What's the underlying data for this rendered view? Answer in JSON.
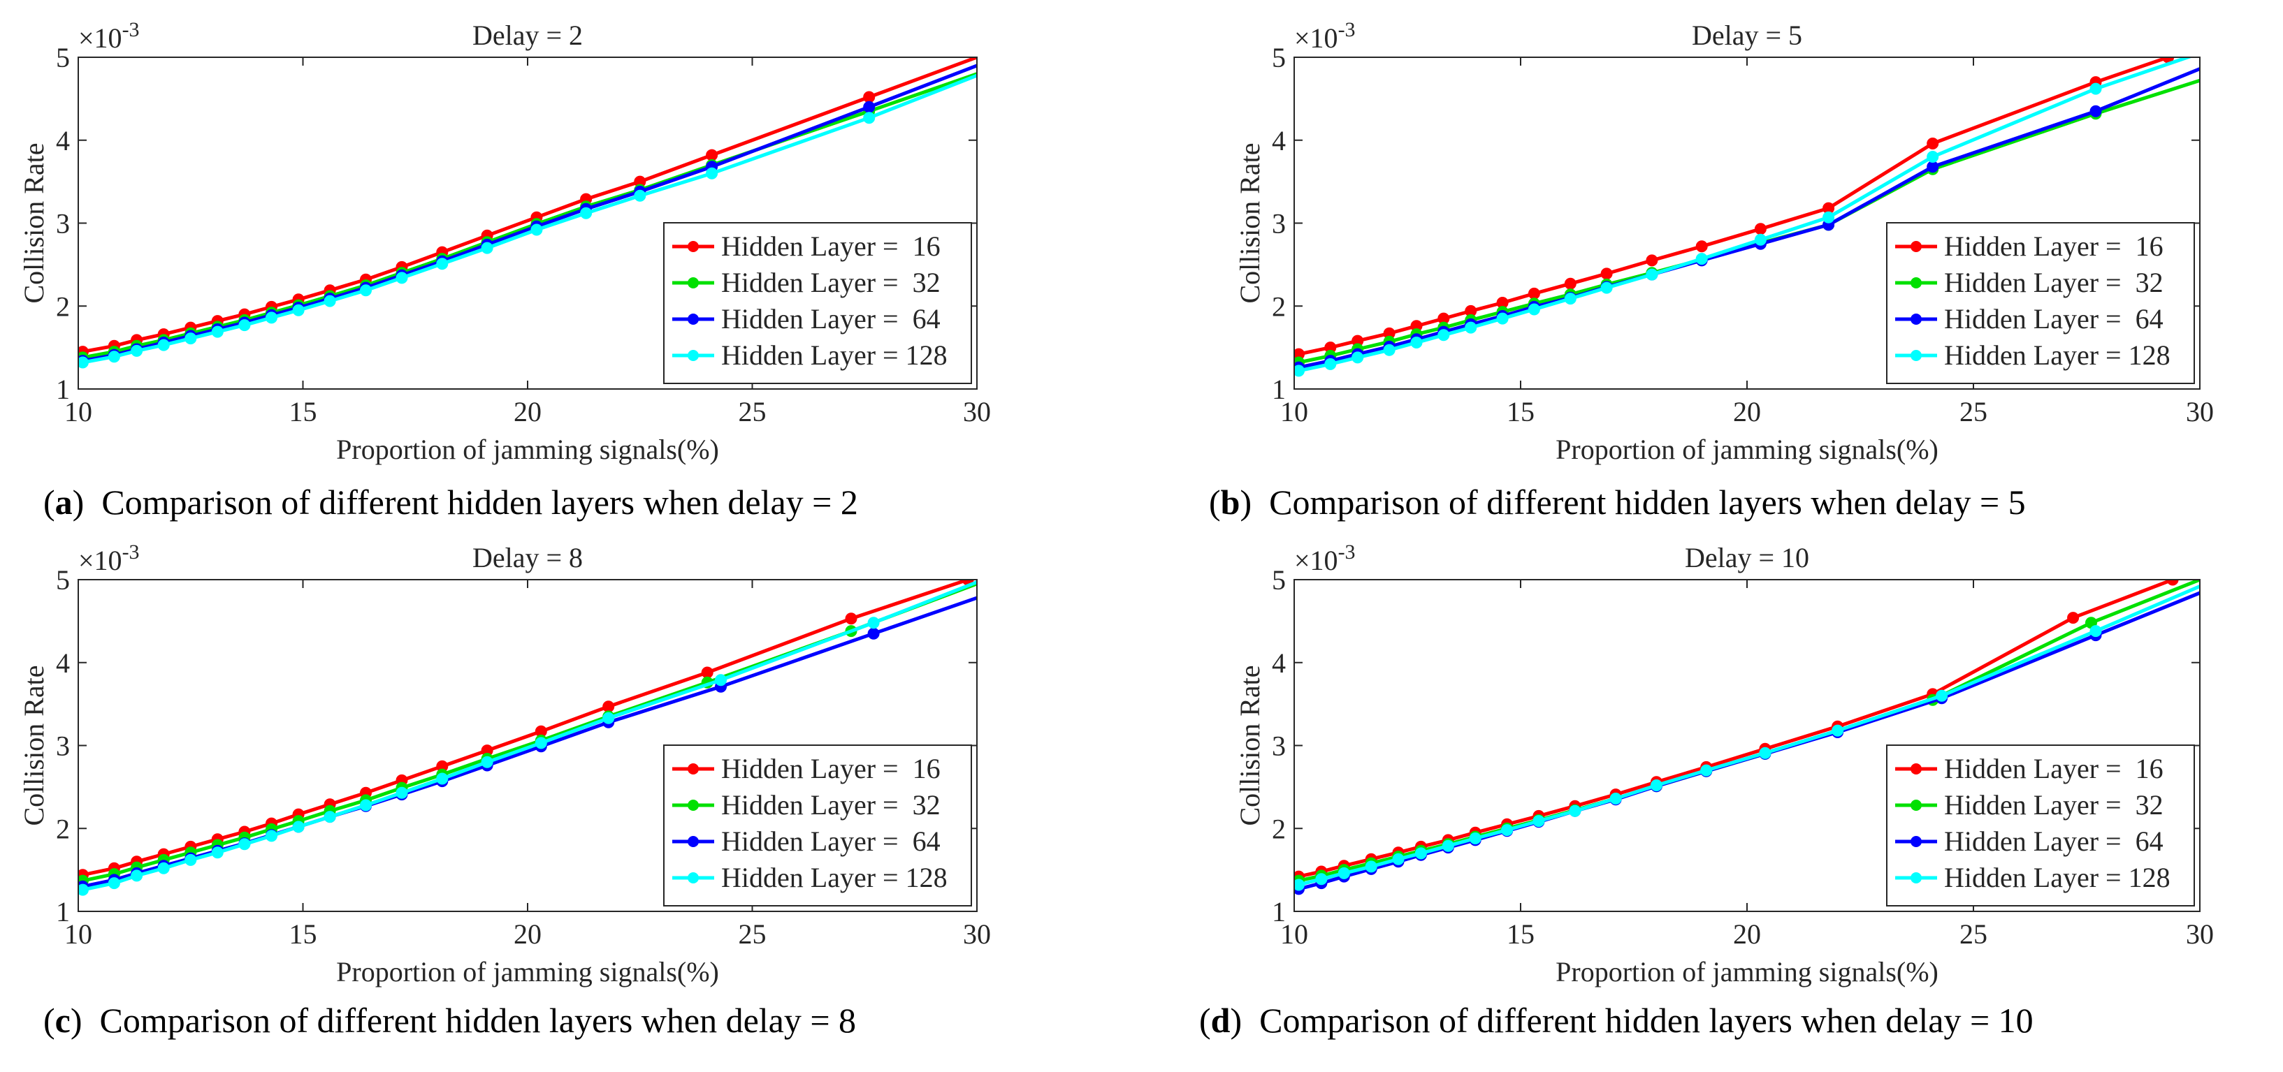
{
  "figure": {
    "panels": [
      {
        "caption_tag": "a",
        "caption_text": "Comparison of different hidden layers when delay = 2",
        "chart_data": {
          "type": "line",
          "title": "Delay =  2",
          "xlabel": "Proportion of jamming signals(%)",
          "ylabel": "Collision Rate",
          "y_exponent_label": "×10",
          "y_exponent": "-3",
          "xlim": [
            10,
            30
          ],
          "ylim": [
            1,
            5
          ],
          "xticks": [
            10,
            15,
            20,
            25,
            30
          ],
          "yticks": [
            1,
            2,
            3,
            4,
            5
          ],
          "grid": false,
          "legend_position": "bottom-right",
          "series": [
            {
              "name": "Hidden Layer =  16",
              "color": "#ff0000",
              "x": [
                10.1,
                10.8,
                11.3,
                11.9,
                12.5,
                13.1,
                13.7,
                14.3,
                14.9,
                15.6,
                16.4,
                17.2,
                18.1,
                19.1,
                20.2,
                21.3,
                22.5,
                24.1,
                27.6,
                30.0
              ],
              "y": [
                1.45,
                1.52,
                1.59,
                1.66,
                1.74,
                1.82,
                1.9,
                1.99,
                2.08,
                2.19,
                2.32,
                2.47,
                2.65,
                2.85,
                3.07,
                3.29,
                3.5,
                3.82,
                4.52,
                5.0
              ]
            },
            {
              "name": "Hidden Layer =  32",
              "color": "#00e000",
              "x": [
                10.1,
                10.8,
                11.3,
                11.9,
                12.5,
                13.1,
                13.7,
                14.3,
                14.9,
                15.6,
                16.4,
                17.2,
                18.1,
                19.1,
                20.2,
                21.3,
                22.5,
                24.1,
                27.6,
                30.0
              ],
              "y": [
                1.38,
                1.45,
                1.52,
                1.59,
                1.67,
                1.75,
                1.83,
                1.92,
                2.01,
                2.12,
                2.25,
                2.4,
                2.57,
                2.77,
                2.99,
                3.2,
                3.4,
                3.7,
                4.35,
                4.8
              ]
            },
            {
              "name": "Hidden Layer =  64",
              "color": "#0000ff",
              "x": [
                10.1,
                10.8,
                11.3,
                11.9,
                12.5,
                13.1,
                13.7,
                14.3,
                14.9,
                15.6,
                16.4,
                17.2,
                18.1,
                19.1,
                20.2,
                21.3,
                22.5,
                24.1,
                27.6,
                30.0
              ],
              "y": [
                1.34,
                1.41,
                1.48,
                1.56,
                1.64,
                1.72,
                1.8,
                1.89,
                1.98,
                2.09,
                2.22,
                2.37,
                2.54,
                2.74,
                2.96,
                3.17,
                3.38,
                3.68,
                4.4,
                4.9
              ]
            },
            {
              "name": "Hidden Layer = 128",
              "color": "#00ffff",
              "x": [
                10.1,
                10.8,
                11.3,
                11.9,
                12.5,
                13.1,
                13.7,
                14.3,
                14.9,
                15.6,
                16.4,
                17.2,
                18.1,
                19.1,
                20.2,
                21.3,
                22.5,
                24.1,
                27.6,
                30.0
              ],
              "y": [
                1.32,
                1.39,
                1.46,
                1.53,
                1.61,
                1.69,
                1.77,
                1.86,
                1.95,
                2.06,
                2.19,
                2.34,
                2.51,
                2.7,
                2.92,
                3.12,
                3.33,
                3.6,
                4.27,
                4.78
              ]
            }
          ]
        }
      },
      {
        "caption_tag": "b",
        "caption_text": "Comparison of different hidden layers when delay = 5",
        "chart_data": {
          "type": "line",
          "title": "Delay =  5",
          "xlabel": "Proportion of jamming signals(%)",
          "ylabel": "Collision Rate",
          "y_exponent_label": "×10",
          "y_exponent": "-3",
          "xlim": [
            10,
            30
          ],
          "ylim": [
            1,
            5
          ],
          "xticks": [
            10,
            15,
            20,
            25,
            30
          ],
          "yticks": [
            1,
            2,
            3,
            4,
            5
          ],
          "grid": false,
          "legend_position": "bottom-right",
          "series": [
            {
              "name": "Hidden Layer =  16",
              "color": "#ff0000",
              "x": [
                10.1,
                10.8,
                11.4,
                12.1,
                12.7,
                13.3,
                13.9,
                14.6,
                15.3,
                16.1,
                16.9,
                17.9,
                19.0,
                20.3,
                21.8,
                24.1,
                27.7,
                29.3
              ],
              "y": [
                1.42,
                1.5,
                1.58,
                1.67,
                1.76,
                1.85,
                1.94,
                2.04,
                2.15,
                2.27,
                2.39,
                2.55,
                2.72,
                2.93,
                3.18,
                3.96,
                4.7,
                5.0
              ]
            },
            {
              "name": "Hidden Layer =  32",
              "color": "#00e000",
              "x": [
                10.1,
                10.8,
                11.4,
                12.1,
                12.7,
                13.3,
                13.9,
                14.6,
                15.3,
                16.1,
                16.9,
                17.9,
                19.0,
                20.3,
                21.8,
                24.1,
                27.7,
                30.0
              ],
              "y": [
                1.32,
                1.4,
                1.48,
                1.57,
                1.66,
                1.74,
                1.83,
                1.93,
                2.03,
                2.14,
                2.26,
                2.4,
                2.56,
                2.76,
                2.98,
                3.65,
                4.32,
                4.72
              ]
            },
            {
              "name": "Hidden Layer =  64",
              "color": "#0000ff",
              "x": [
                10.1,
                10.8,
                11.4,
                12.1,
                12.7,
                13.3,
                13.9,
                14.6,
                15.3,
                16.1,
                16.9,
                17.9,
                19.0,
                20.3,
                21.8,
                24.1,
                27.7,
                30.0
              ],
              "y": [
                1.26,
                1.34,
                1.42,
                1.51,
                1.6,
                1.69,
                1.78,
                1.88,
                1.99,
                2.1,
                2.23,
                2.38,
                2.55,
                2.75,
                2.98,
                3.68,
                4.35,
                4.86
              ]
            },
            {
              "name": "Hidden Layer = 128",
              "color": "#00ffff",
              "x": [
                10.1,
                10.8,
                11.4,
                12.1,
                12.7,
                13.3,
                13.9,
                14.6,
                15.3,
                16.1,
                16.9,
                17.9,
                19.0,
                20.3,
                21.8,
                24.1,
                27.7,
                30.0
              ],
              "y": [
                1.22,
                1.3,
                1.38,
                1.47,
                1.56,
                1.65,
                1.74,
                1.85,
                1.96,
                2.09,
                2.22,
                2.38,
                2.57,
                2.8,
                3.07,
                3.8,
                4.62,
                5.05
              ]
            }
          ]
        }
      },
      {
        "caption_tag": "c",
        "caption_text": "Comparison of different hidden layers when delay = 8",
        "chart_data": {
          "type": "line",
          "title": "Delay =  8",
          "xlabel": "Proportion of jamming signals(%)",
          "ylabel": "Collision Rate",
          "y_exponent_label": "×10",
          "y_exponent": "-3",
          "xlim": [
            10,
            30
          ],
          "ylim": [
            1,
            5
          ],
          "xticks": [
            10,
            15,
            20,
            25,
            30
          ],
          "yticks": [
            1,
            2,
            3,
            4,
            5
          ],
          "grid": false,
          "legend_position": "bottom-right",
          "series": [
            {
              "name": "Hidden Layer =  16",
              "color": "#ff0000",
              "x": [
                10.1,
                10.8,
                11.3,
                11.9,
                12.5,
                13.1,
                13.7,
                14.3,
                14.9,
                15.6,
                16.4,
                17.2,
                18.1,
                19.1,
                20.3,
                21.8,
                24.0,
                27.2,
                29.8
              ],
              "y": [
                1.44,
                1.52,
                1.6,
                1.69,
                1.78,
                1.87,
                1.96,
                2.06,
                2.17,
                2.29,
                2.43,
                2.58,
                2.75,
                2.94,
                3.17,
                3.47,
                3.88,
                4.53,
                5.0
              ]
            },
            {
              "name": "Hidden Layer =  32",
              "color": "#00e000",
              "x": [
                10.1,
                10.8,
                11.3,
                11.9,
                12.5,
                13.1,
                13.7,
                14.3,
                14.9,
                15.6,
                16.4,
                17.2,
                18.1,
                19.1,
                20.3,
                21.8,
                24.0,
                27.2,
                30.0
              ],
              "y": [
                1.37,
                1.45,
                1.53,
                1.62,
                1.71,
                1.8,
                1.89,
                1.99,
                2.09,
                2.21,
                2.34,
                2.49,
                2.65,
                2.84,
                3.06,
                3.35,
                3.76,
                4.38,
                4.95
              ]
            },
            {
              "name": "Hidden Layer =  64",
              "color": "#0000ff",
              "x": [
                10.1,
                10.8,
                11.3,
                11.9,
                12.5,
                13.1,
                13.7,
                14.3,
                14.9,
                15.6,
                16.4,
                17.2,
                18.1,
                19.1,
                20.3,
                21.8,
                24.3,
                27.7,
                30.0
              ],
              "y": [
                1.3,
                1.38,
                1.46,
                1.55,
                1.64,
                1.73,
                1.82,
                1.92,
                2.02,
                2.14,
                2.27,
                2.41,
                2.57,
                2.76,
                2.99,
                3.28,
                3.71,
                4.35,
                4.78
              ]
            },
            {
              "name": "Hidden Layer = 128",
              "color": "#00ffff",
              "x": [
                10.1,
                10.8,
                11.3,
                11.9,
                12.5,
                13.1,
                13.7,
                14.3,
                14.9,
                15.6,
                16.4,
                17.2,
                18.1,
                19.1,
                20.3,
                21.8,
                24.3,
                27.7,
                30.0
              ],
              "y": [
                1.26,
                1.34,
                1.43,
                1.52,
                1.62,
                1.71,
                1.81,
                1.91,
                2.02,
                2.14,
                2.28,
                2.43,
                2.6,
                2.8,
                3.03,
                3.33,
                3.79,
                4.48,
                4.97
              ]
            }
          ]
        }
      },
      {
        "caption_tag": "d",
        "caption_text": "Comparison of different hidden layers when delay = 10",
        "chart_data": {
          "type": "line",
          "title": "Delay = 10",
          "xlabel": "Proportion of jamming signals(%)",
          "ylabel": "Collision Rate",
          "y_exponent_label": "×10",
          "y_exponent": "-3",
          "xlim": [
            10,
            30
          ],
          "ylim": [
            1,
            5
          ],
          "xticks": [
            10,
            15,
            20,
            25,
            30
          ],
          "yticks": [
            1,
            2,
            3,
            4,
            5
          ],
          "grid": false,
          "legend_position": "bottom-right",
          "series": [
            {
              "name": "Hidden Layer =  16",
              "color": "#ff0000",
              "x": [
                10.1,
                10.6,
                11.1,
                11.7,
                12.3,
                12.8,
                13.4,
                14.0,
                14.7,
                15.4,
                16.2,
                17.1,
                18.0,
                19.1,
                20.4,
                22.0,
                24.1,
                27.2,
                29.4
              ],
              "y": [
                1.42,
                1.48,
                1.55,
                1.63,
                1.71,
                1.78,
                1.86,
                1.95,
                2.05,
                2.15,
                2.27,
                2.41,
                2.56,
                2.74,
                2.96,
                3.23,
                3.62,
                4.54,
                5.0
              ]
            },
            {
              "name": "Hidden Layer =  32",
              "color": "#00e000",
              "x": [
                10.1,
                10.6,
                11.1,
                11.7,
                12.3,
                12.8,
                13.4,
                14.0,
                14.7,
                15.4,
                16.2,
                17.1,
                18.0,
                19.1,
                20.4,
                22.0,
                24.1,
                27.6,
                30.0
              ],
              "y": [
                1.37,
                1.43,
                1.5,
                1.58,
                1.66,
                1.73,
                1.81,
                1.9,
                2.0,
                2.1,
                2.22,
                2.36,
                2.51,
                2.69,
                2.9,
                3.17,
                3.55,
                4.48,
                5.0
              ]
            },
            {
              "name": "Hidden Layer =  64",
              "color": "#0000ff",
              "x": [
                10.1,
                10.6,
                11.1,
                11.7,
                12.3,
                12.8,
                13.4,
                14.0,
                14.7,
                15.4,
                16.2,
                17.1,
                18.0,
                19.1,
                20.4,
                22.0,
                24.3,
                27.7,
                30.0
              ],
              "y": [
                1.27,
                1.34,
                1.42,
                1.51,
                1.6,
                1.68,
                1.77,
                1.86,
                1.97,
                2.08,
                2.21,
                2.35,
                2.51,
                2.69,
                2.9,
                3.16,
                3.57,
                4.33,
                4.84
              ]
            },
            {
              "name": "Hidden Layer = 128",
              "color": "#00ffff",
              "x": [
                10.1,
                10.6,
                11.1,
                11.7,
                12.3,
                12.8,
                13.4,
                14.0,
                14.7,
                15.4,
                16.2,
                17.1,
                18.0,
                19.1,
                20.4,
                22.0,
                24.3,
                27.7,
                30.0
              ],
              "y": [
                1.32,
                1.39,
                1.46,
                1.54,
                1.63,
                1.7,
                1.79,
                1.88,
                1.98,
                2.09,
                2.21,
                2.36,
                2.52,
                2.7,
                2.91,
                3.18,
                3.6,
                4.38,
                4.92
              ]
            }
          ]
        }
      }
    ]
  }
}
